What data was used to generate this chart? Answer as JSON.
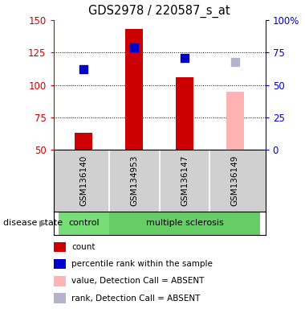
{
  "title": "GDS2978 / 220587_s_at",
  "samples": [
    "GSM136140",
    "GSM134953",
    "GSM136147",
    "GSM136149"
  ],
  "bar_values": [
    63,
    143,
    106,
    95
  ],
  "bar_colors": [
    "#cc0000",
    "#cc0000",
    "#cc0000",
    "#ffb3b3"
  ],
  "rank_values": [
    112,
    129,
    121,
    118
  ],
  "rank_colors": [
    "#0000cc",
    "#0000cc",
    "#0000cc",
    "#b3b3cc"
  ],
  "ylim_left": [
    50,
    150
  ],
  "ylim_right": [
    0,
    100
  ],
  "yticks_left": [
    50,
    75,
    100,
    125,
    150
  ],
  "yticks_right": [
    0,
    25,
    50,
    75,
    100
  ],
  "ytick_labels_left": [
    "50",
    "75",
    "100",
    "125",
    "150"
  ],
  "ytick_labels_right": [
    "0",
    "25",
    "50",
    "75",
    "100%"
  ],
  "gridlines_at": [
    75,
    100,
    125
  ],
  "disease_state_label": "disease state",
  "groups": [
    {
      "label": "control",
      "xmin": -0.5,
      "xmax": 0.5,
      "color": "#77dd77"
    },
    {
      "label": "multiple sclerosis",
      "xmin": 0.5,
      "xmax": 3.5,
      "color": "#66cc66"
    }
  ],
  "legend_items": [
    {
      "color": "#cc0000",
      "label": "count"
    },
    {
      "color": "#0000cc",
      "label": "percentile rank within the sample"
    },
    {
      "color": "#ffb3b3",
      "label": "value, Detection Call = ABSENT"
    },
    {
      "color": "#b3b3cc",
      "label": "rank, Detection Call = ABSENT"
    }
  ],
  "bar_width": 0.35,
  "x_positions": [
    0,
    1,
    2,
    3
  ],
  "rank_marker_size": 55,
  "bg_color": "#ffffff",
  "sample_area_color": "#d0d0d0",
  "label_color_left": "#cc0000",
  "label_color_right": "#0000cc",
  "xlim": [
    -0.6,
    3.6
  ]
}
